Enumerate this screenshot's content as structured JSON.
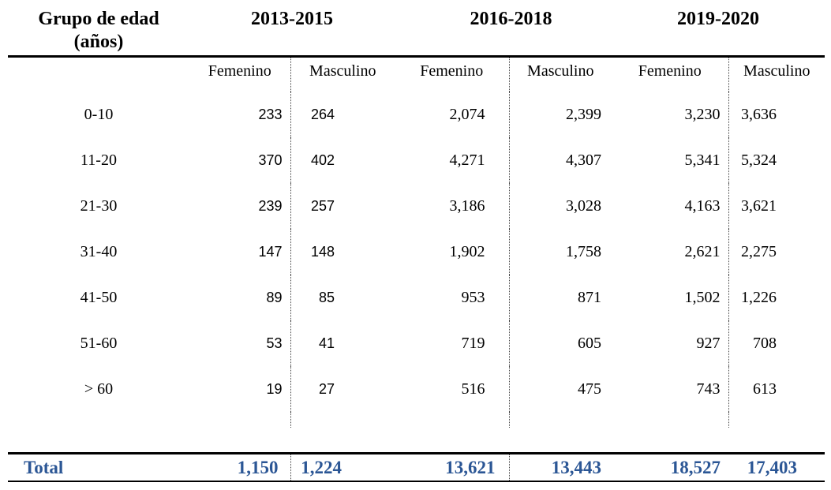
{
  "title_line1": "Grupo de edad",
  "title_line2": "(años)",
  "periods": [
    {
      "label": "2013-2015",
      "female": "Femenino",
      "male": "Masculino"
    },
    {
      "label": "2016-2018",
      "female": "Femenino",
      "male": "Masculino"
    },
    {
      "label": "2019-2020",
      "female": "Femenino",
      "male": "Masculino"
    }
  ],
  "rows": [
    {
      "label": "0-10",
      "values": [
        "233",
        "264",
        "2,074",
        "2,399",
        "3,230",
        "3,636"
      ]
    },
    {
      "label": "11-20",
      "values": [
        "370",
        "402",
        "4,271",
        "4,307",
        "5,341",
        "5,324"
      ]
    },
    {
      "label": "21-30",
      "values": [
        "239",
        "257",
        "3,186",
        "3,028",
        "4,163",
        "3,621"
      ]
    },
    {
      "label": "31-40",
      "values": [
        "147",
        "148",
        "1,902",
        "1,758",
        "2,621",
        "2,275"
      ]
    },
    {
      "label": "41-50",
      "values": [
        "89",
        "85",
        "953",
        "871",
        "1,502",
        "1,226"
      ]
    },
    {
      "label": "51-60",
      "values": [
        "53",
        "41",
        "719",
        "605",
        "927",
        "708"
      ]
    },
    {
      "label": "> 60",
      "values": [
        "19",
        "27",
        "516",
        "475",
        "743",
        "613"
      ]
    }
  ],
  "total": {
    "label": "Total",
    "values": [
      "1,150",
      "1,224",
      "13,621",
      "13,443",
      "18,527",
      "17,403"
    ]
  },
  "colors": {
    "text": "#000000",
    "total_text": "#2B5695",
    "rule_line": "#000000",
    "dotted_divider": "#444444"
  },
  "chart_data": {
    "type": "table",
    "title": "Grupo de edad (años) por periodo y sexo",
    "columns": [
      "Grupo de edad (años)",
      "2013-2015 Femenino",
      "2013-2015 Masculino",
      "2016-2018 Femenino",
      "2016-2018 Masculino",
      "2019-2020 Femenino",
      "2019-2020 Masculino"
    ],
    "rows": [
      [
        "0-10",
        233,
        264,
        2074,
        2399,
        3230,
        3636
      ],
      [
        "11-20",
        370,
        402,
        4271,
        4307,
        5341,
        5324
      ],
      [
        "21-30",
        239,
        257,
        3186,
        3028,
        4163,
        3621
      ],
      [
        "31-40",
        147,
        148,
        1902,
        1758,
        2621,
        2275
      ],
      [
        "41-50",
        89,
        85,
        953,
        871,
        1502,
        1226
      ],
      [
        "51-60",
        53,
        41,
        719,
        605,
        927,
        708
      ],
      [
        "> 60",
        19,
        27,
        516,
        475,
        743,
        613
      ],
      [
        "Total",
        1150,
        1224,
        13621,
        13443,
        18527,
        17403
      ]
    ]
  }
}
